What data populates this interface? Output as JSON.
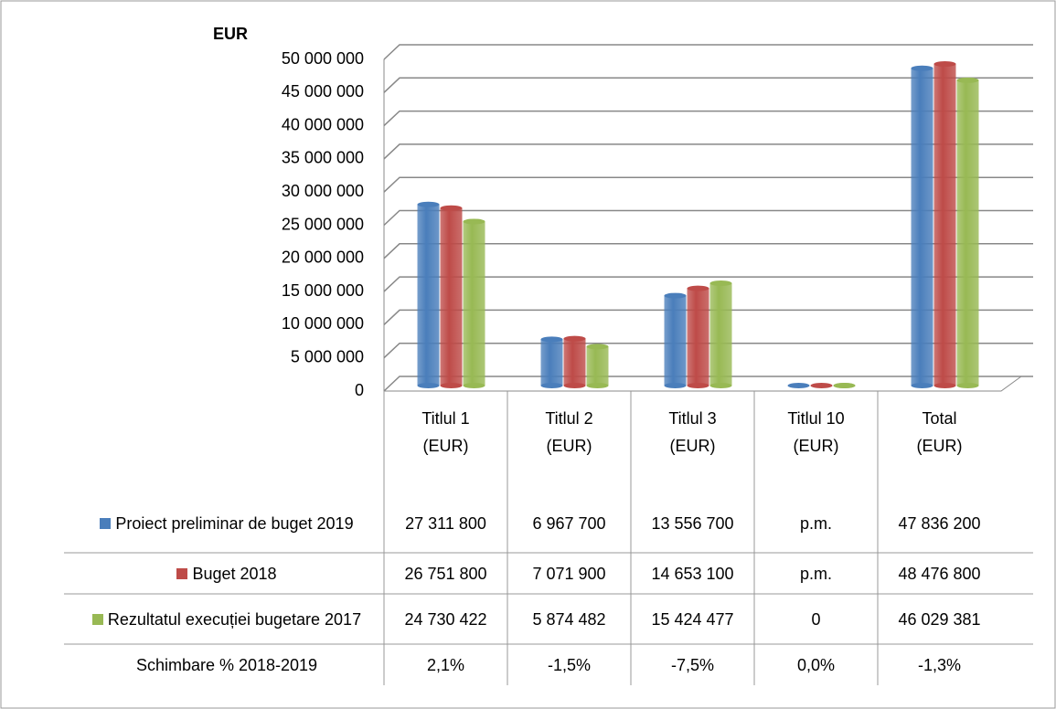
{
  "chart_data": {
    "type": "bar3d",
    "y_axis_title": "EUR",
    "categories": [
      "Titlul 1 (EUR)",
      "Titlul 2 (EUR)",
      "Titlul 3 (EUR)",
      "Titlul 10 (EUR)",
      "Total (EUR)"
    ],
    "series": [
      {
        "name": "Proiect preliminar de buget 2019",
        "color": "#4a7ebb",
        "values": [
          27311800,
          6967700,
          13556700,
          null,
          47836200
        ],
        "value_labels": [
          "27 311 800",
          "6 967 700",
          "13 556 700",
          "p.m.",
          "47 836 200"
        ]
      },
      {
        "name": "Buget 2018",
        "color": "#be4b48",
        "values": [
          26751800,
          7071900,
          14653100,
          null,
          48476800
        ],
        "value_labels": [
          "26 751 800",
          "7 071 900",
          "14 653 100",
          "p.m.",
          "48 476 800"
        ]
      },
      {
        "name": "Rezultatul execuției bugetare 2017",
        "color": "#98b954",
        "values": [
          24730422,
          5874482,
          15424477,
          0,
          46029381
        ],
        "value_labels": [
          "24 730 422",
          "5 874 482",
          "15 424 477",
          "0",
          "46 029 381"
        ]
      }
    ],
    "table_extra_row": {
      "name": "Schimbare % 2018-2019",
      "values": [
        2.1,
        -1.5,
        -7.5,
        0.0,
        -1.3
      ],
      "value_labels": [
        "2,1%",
        "-1,5%",
        "-7,5%",
        "0,0%",
        "-1,3%"
      ]
    },
    "ylim": [
      0,
      50000000
    ],
    "yticks": [
      0,
      {
        "value": 5000000,
        "label": "5 000 000"
      },
      {
        "value": 10000000,
        "label": "10 000 000"
      },
      {
        "value": 15000000,
        "label": "15 000 000"
      },
      {
        "value": 20000000,
        "label": "20 000 000"
      },
      {
        "value": 25000000,
        "label": "25 000 000"
      },
      {
        "value": 30000000,
        "label": "30 000 000"
      },
      {
        "value": 35000000,
        "label": "35 000 000"
      },
      {
        "value": 40000000,
        "label": "40 000 000"
      },
      {
        "value": 45000000,
        "label": "45 000 000"
      },
      {
        "value": 50000000,
        "label": "50 000 000"
      }
    ],
    "grid": true
  }
}
